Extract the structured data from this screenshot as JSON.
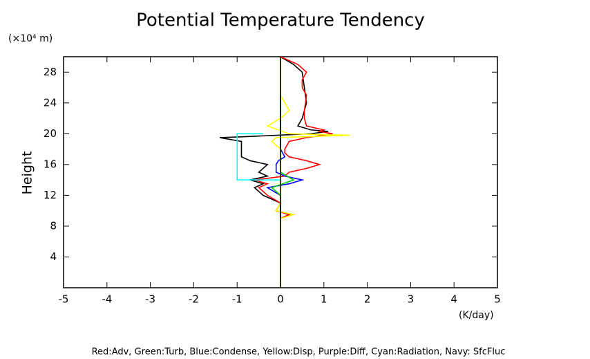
{
  "chart_data": {
    "type": "line",
    "title": "Potential Temperature Tendency",
    "y_unit": "(×10⁴ m)",
    "y_label": "Height",
    "x_unit": "(K/day)",
    "legend_text": "Red:Adv, Green:Turb, Blue:Condense, Yellow:Disp, Purple:Diff, Cyan:Radiation, Navy: SfcFluc",
    "xlim": [
      -5,
      5
    ],
    "xticks": [
      -5,
      -4,
      -3,
      -2,
      -1,
      0,
      1,
      2,
      3,
      4,
      5
    ],
    "ylim": [
      0,
      30
    ],
    "yticks": [
      4,
      8,
      12,
      16,
      20,
      24,
      28
    ],
    "zero_line_color": "#000000",
    "series": [
      {
        "color": "#000000",
        "values": [
          0,
          0,
          0.2,
          -0.1,
          0,
          -0.2,
          -0.4,
          -0.5,
          -0.6,
          -0.4,
          -0.7,
          -0.3,
          -0.5,
          -0.3,
          -0.7,
          -0.9,
          -0.9,
          -0.9,
          -1.4,
          -0.9,
          0.7,
          1.1,
          0.7,
          0.4,
          0.5,
          0.6,
          0.55,
          0.5,
          0.3,
          0
        ],
        "y": [
          0,
          9,
          9.5,
          10,
          11,
          11.5,
          12,
          12.5,
          13,
          13.5,
          14,
          14.5,
          15,
          16,
          16.5,
          17,
          18,
          19,
          19.5,
          19.6,
          20,
          20.3,
          20.5,
          21,
          22,
          24,
          26,
          28,
          29,
          30
        ]
      },
      {
        "color": "#ff0000",
        "values": [
          0,
          0,
          0.2,
          -0.1,
          0,
          -0.3,
          -0.5,
          -0.3,
          -0.6,
          0.1,
          0.2,
          0.6,
          0.9,
          0.6,
          0.2,
          0.1,
          0.1,
          0.2,
          0.6,
          1.2,
          0.9,
          1.0,
          0.6,
          0.55,
          0.55,
          0.6,
          0.5,
          0.5,
          0.6,
          0.4,
          0
        ],
        "y": [
          0,
          9,
          9.5,
          10,
          11,
          12,
          13,
          13.5,
          14,
          14.5,
          15,
          15.5,
          16,
          16.5,
          17,
          17.5,
          18,
          19,
          19.5,
          20,
          20.3,
          20.5,
          21,
          22,
          23,
          25,
          26,
          27,
          28,
          29,
          30
        ]
      },
      {
        "color": "#0000ff",
        "values": [
          0,
          0,
          -0.3,
          0.2,
          0.5,
          0.1,
          -0.1,
          -0.1,
          -0.05,
          0.1,
          0,
          0
        ],
        "y": [
          0,
          12,
          13,
          13.5,
          14,
          14.5,
          15,
          16,
          16.5,
          17,
          18,
          30
        ]
      },
      {
        "color": "#00cc00",
        "values": [
          0,
          0,
          -0.2,
          0.3,
          0,
          0,
          0
        ],
        "y": [
          0,
          12,
          13,
          14,
          15,
          16,
          30
        ]
      },
      {
        "color": "#ffff00",
        "values": [
          0,
          0,
          0.3,
          -0.1,
          0,
          0,
          -0.2,
          -0.1,
          1.6,
          0.2,
          -0.3,
          0,
          0.2,
          0,
          0
        ],
        "y": [
          0,
          9,
          9.5,
          10,
          11,
          18,
          19,
          19.5,
          19.8,
          20,
          21,
          22,
          23,
          25,
          30
        ]
      },
      {
        "color": "#00ffff",
        "values": [
          0,
          -1,
          -1,
          -0.4
        ],
        "y": [
          14,
          14,
          20,
          20
        ]
      }
    ]
  }
}
